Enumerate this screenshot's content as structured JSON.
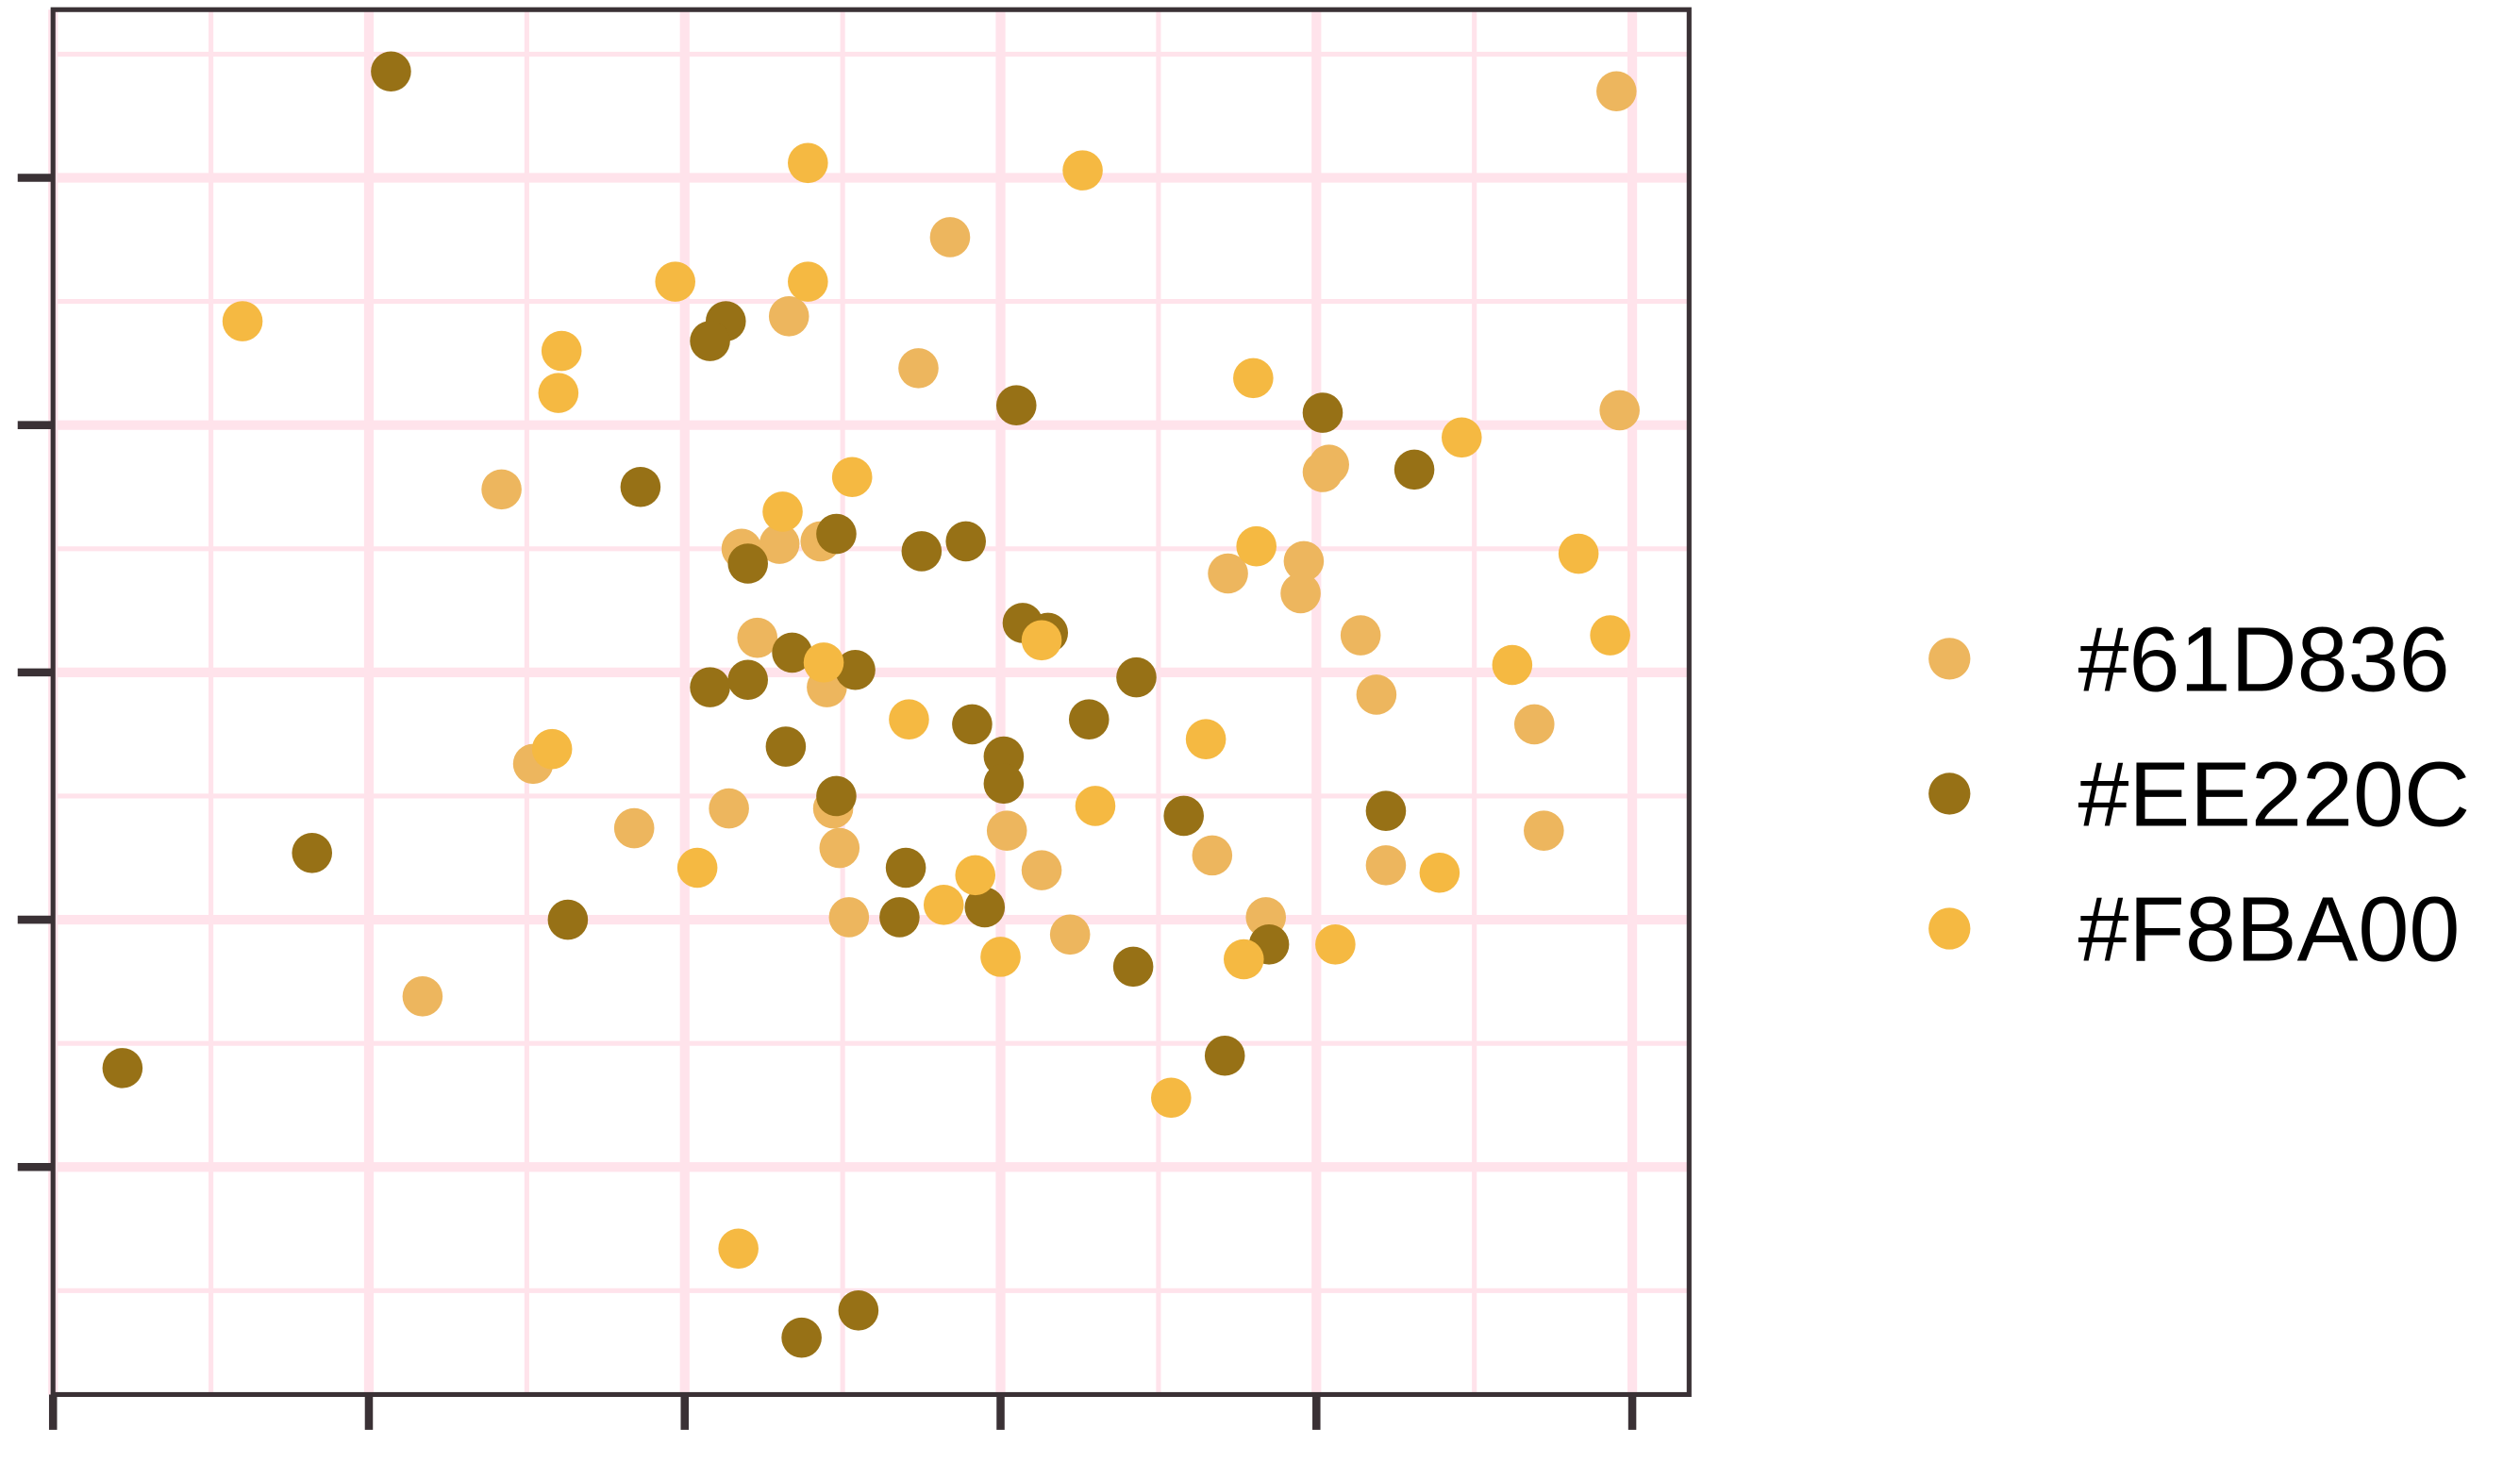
{
  "chart_data": {
    "type": "scatter",
    "title": "",
    "xlabel": "",
    "ylabel": "",
    "xlim": [
      0,
      5.18
    ],
    "ylim": [
      -0.92,
      4.68
    ],
    "x_ticks": [
      0,
      1,
      2,
      3,
      4,
      5
    ],
    "y_ticks": [
      0,
      1,
      2,
      3,
      4
    ],
    "tick_labels_shown": false,
    "grid": true,
    "grid_color": "#FFE3EB",
    "panel_border_color": "#3A3135",
    "legend_position": "right",
    "series": [
      {
        "name": "#61D836",
        "color": "#EDB65E",
        "points": [
          [
            4.95,
            4.35
          ],
          [
            2.84,
            3.76
          ],
          [
            2.33,
            3.44
          ],
          [
            2.74,
            3.23
          ],
          [
            4.96,
            3.06
          ],
          [
            1.42,
            2.74
          ],
          [
            4.04,
            2.84
          ],
          [
            4.02,
            2.81
          ],
          [
            2.18,
            2.5
          ],
          [
            2.3,
            2.52
          ],
          [
            2.43,
            2.53
          ],
          [
            3.72,
            2.4
          ],
          [
            3.96,
            2.45
          ],
          [
            3.95,
            2.32
          ],
          [
            2.23,
            2.14
          ],
          [
            4.14,
            2.15
          ],
          [
            2.45,
            1.94
          ],
          [
            4.19,
            1.91
          ],
          [
            4.69,
            1.79
          ],
          [
            1.52,
            1.63
          ],
          [
            2.14,
            1.45
          ],
          [
            2.47,
            1.45
          ],
          [
            1.84,
            1.37
          ],
          [
            4.72,
            1.36
          ],
          [
            3.02,
            1.36
          ],
          [
            2.49,
            1.29
          ],
          [
            3.67,
            1.26
          ],
          [
            4.22,
            1.22
          ],
          [
            3.13,
            1.2
          ],
          [
            2.52,
            1.01
          ],
          [
            3.84,
            1.01
          ],
          [
            3.22,
            0.94
          ],
          [
            1.17,
            0.69
          ]
        ]
      },
      {
        "name": "#EE220C",
        "color": "#977116",
        "points": [
          [
            1.07,
            4.43
          ],
          [
            2.13,
            3.42
          ],
          [
            2.08,
            3.34
          ],
          [
            3.05,
            3.08
          ],
          [
            4.02,
            3.05
          ],
          [
            4.31,
            2.82
          ],
          [
            1.86,
            2.75
          ],
          [
            2.2,
            2.44
          ],
          [
            2.48,
            2.56
          ],
          [
            2.75,
            2.49
          ],
          [
            2.89,
            2.53
          ],
          [
            3.07,
            2.2
          ],
          [
            3.15,
            2.16
          ],
          [
            2.34,
            2.08
          ],
          [
            2.54,
            2.01
          ],
          [
            3.43,
            1.98
          ],
          [
            2.08,
            1.94
          ],
          [
            2.2,
            1.97
          ],
          [
            2.91,
            1.79
          ],
          [
            3.28,
            1.81
          ],
          [
            2.32,
            1.7
          ],
          [
            3.01,
            1.66
          ],
          [
            3.01,
            1.55
          ],
          [
            2.48,
            1.5
          ],
          [
            3.58,
            1.42
          ],
          [
            4.22,
            1.44
          ],
          [
            0.82,
            1.27
          ],
          [
            2.7,
            1.21
          ],
          [
            2.95,
            1.05
          ],
          [
            2.68,
            1.01
          ],
          [
            1.63,
            1.0
          ],
          [
            3.85,
            0.9
          ],
          [
            3.42,
            0.81
          ],
          [
            3.71,
            0.45
          ],
          [
            0.22,
            0.4
          ],
          [
            2.55,
            -0.58
          ],
          [
            2.37,
            -0.69
          ]
        ]
      },
      {
        "name": "#F8BA00",
        "color": "#F5B942",
        "points": [
          [
            2.39,
            4.06
          ],
          [
            3.26,
            4.03
          ],
          [
            1.97,
            3.58
          ],
          [
            2.39,
            3.58
          ],
          [
            0.6,
            3.42
          ],
          [
            1.61,
            3.3
          ],
          [
            1.6,
            3.13
          ],
          [
            3.8,
            3.19
          ],
          [
            4.46,
            2.95
          ],
          [
            2.53,
            2.79
          ],
          [
            2.31,
            2.65
          ],
          [
            3.81,
            2.51
          ],
          [
            4.83,
            2.48
          ],
          [
            4.93,
            2.15
          ],
          [
            3.13,
            2.13
          ],
          [
            2.44,
            2.04
          ],
          [
            4.62,
            2.03
          ],
          [
            2.71,
            1.81
          ],
          [
            3.65,
            1.73
          ],
          [
            1.58,
            1.69
          ],
          [
            3.3,
            1.46
          ],
          [
            2.04,
            1.21
          ],
          [
            2.92,
            1.18
          ],
          [
            2.82,
            1.06
          ],
          [
            4.39,
            1.19
          ],
          [
            4.06,
            0.9
          ],
          [
            3.0,
            0.85
          ],
          [
            3.77,
            0.84
          ],
          [
            3.54,
            0.28
          ],
          [
            2.17,
            -0.33
          ]
        ]
      }
    ]
  }
}
